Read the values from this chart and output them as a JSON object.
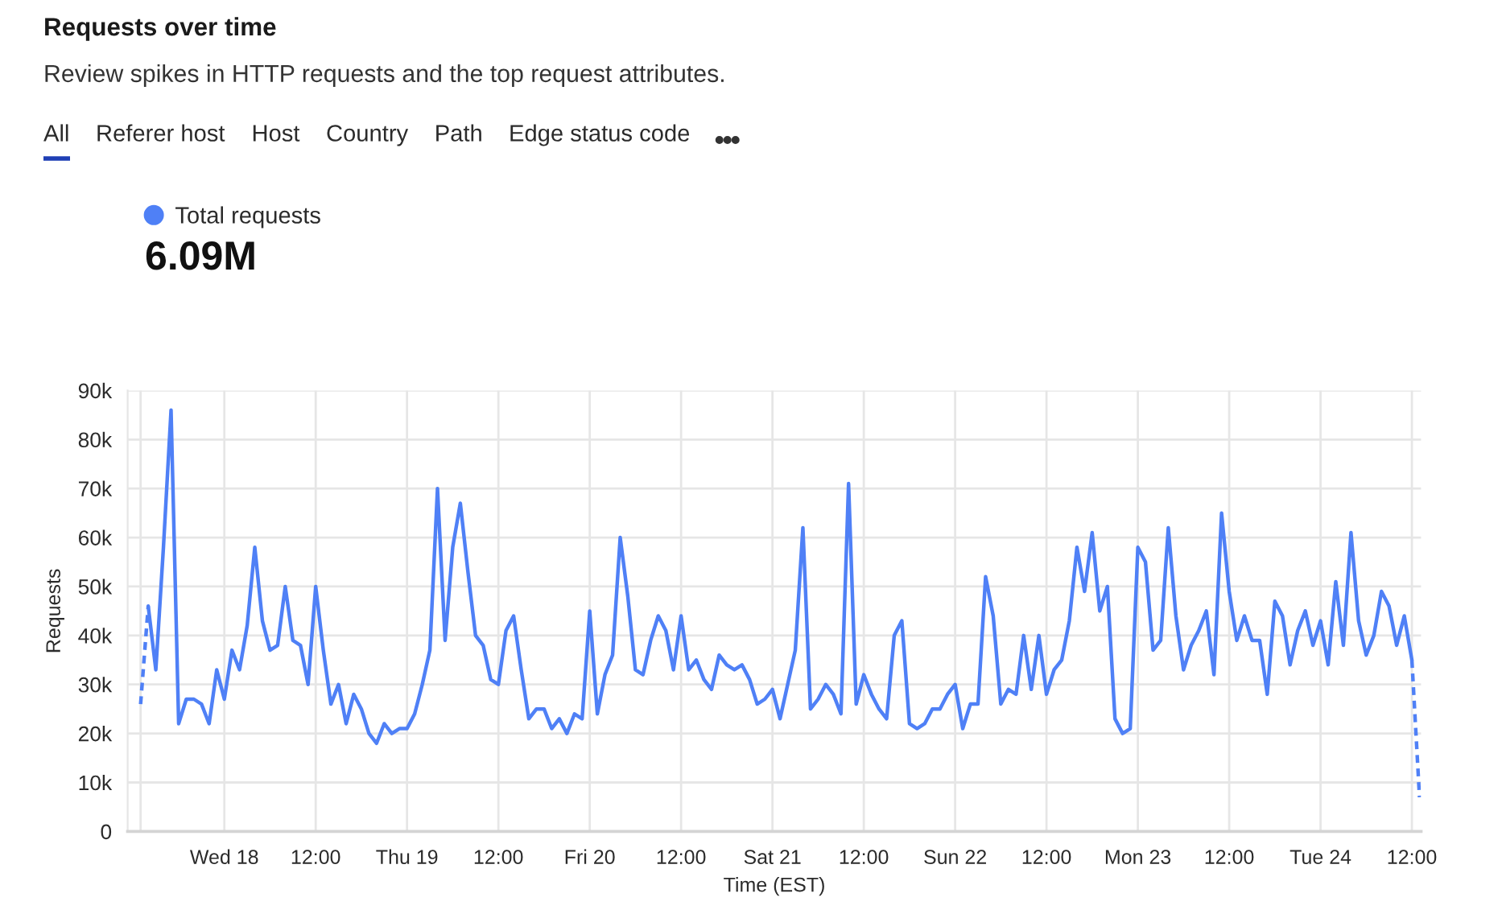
{
  "chart_data": {
    "type": "line",
    "title": "Requests over time",
    "subtitle": "Review spikes in HTTP requests and the top request attributes.",
    "annotations": [
      "All",
      "Referer host",
      "Host",
      "Country",
      "Path",
      "Edge status code",
      "6.09M"
    ],
    "xlabel": "Time (EST)",
    "ylabel": "Requests",
    "categories": [
      null,
      null,
      null,
      null,
      null,
      null,
      null,
      null,
      null,
      null,
      null,
      "Wed 18",
      null,
      null,
      null,
      null,
      null,
      null,
      null,
      null,
      null,
      null,
      null,
      "12:00",
      null,
      null,
      null,
      null,
      null,
      null,
      null,
      null,
      null,
      null,
      null,
      "Thu 19",
      null,
      null,
      null,
      null,
      null,
      null,
      null,
      null,
      null,
      null,
      null,
      "12:00",
      null,
      null,
      null,
      null,
      null,
      null,
      null,
      null,
      null,
      null,
      null,
      "Fri 20",
      null,
      null,
      null,
      null,
      null,
      null,
      null,
      null,
      null,
      null,
      null,
      "12:00",
      null,
      null,
      null,
      null,
      null,
      null,
      null,
      null,
      null,
      null,
      null,
      "Sat 21",
      null,
      null,
      null,
      null,
      null,
      null,
      null,
      null,
      null,
      null,
      null,
      "12:00",
      null,
      null,
      null,
      null,
      null,
      null,
      null,
      null,
      null,
      null,
      null,
      "Sun 22",
      null,
      null,
      null,
      null,
      null,
      null,
      null,
      null,
      null,
      null,
      null,
      "12:00",
      null,
      null,
      null,
      null,
      null,
      null,
      null,
      null,
      null,
      null,
      null,
      "Mon 23",
      null,
      null,
      null,
      null,
      null,
      null,
      null,
      null,
      null,
      null,
      null,
      "12:00",
      null,
      null,
      null,
      null,
      null,
      null,
      null,
      null,
      null,
      null,
      null,
      "Tue 24",
      null,
      null,
      null,
      null,
      null,
      null,
      null,
      null,
      null,
      null,
      null,
      "12:00",
      null
    ],
    "series": [
      {
        "name": "Total requests",
        "color": "#4f80f6",
        "line_style": "solid",
        "values": [
          null,
          46000,
          33000,
          58000,
          86000,
          22000,
          27000,
          27000,
          26000,
          22000,
          33000,
          27000,
          37000,
          33000,
          42000,
          58000,
          43000,
          37000,
          38000,
          50000,
          39000,
          38000,
          30000,
          50000,
          37000,
          26000,
          30000,
          22000,
          28000,
          25000,
          20000,
          18000,
          22000,
          20000,
          21000,
          21000,
          24000,
          30000,
          37000,
          70000,
          39000,
          58000,
          67000,
          53000,
          40000,
          38000,
          31000,
          30000,
          41000,
          44000,
          33000,
          23000,
          25000,
          25000,
          21000,
          23000,
          20000,
          24000,
          23000,
          45000,
          24000,
          32000,
          36000,
          60000,
          48000,
          33000,
          32000,
          39000,
          44000,
          41000,
          33000,
          44000,
          33000,
          35000,
          31000,
          29000,
          36000,
          34000,
          33000,
          34000,
          31000,
          26000,
          27000,
          29000,
          23000,
          30000,
          37000,
          62000,
          25000,
          27000,
          30000,
          28000,
          24000,
          71000,
          26000,
          32000,
          28000,
          25000,
          23000,
          40000,
          43000,
          22000,
          21000,
          22000,
          25000,
          25000,
          28000,
          30000,
          21000,
          26000,
          26000,
          52000,
          44000,
          26000,
          29000,
          28000,
          40000,
          29000,
          40000,
          28000,
          33000,
          35000,
          43000,
          58000,
          49000,
          61000,
          45000,
          50000,
          23000,
          20000,
          21000,
          58000,
          55000,
          37000,
          39000,
          62000,
          44000,
          33000,
          38000,
          41000,
          45000,
          32000,
          65000,
          49000,
          39000,
          44000,
          39000,
          39000,
          28000,
          47000,
          44000,
          34000,
          41000,
          45000,
          38000,
          43000,
          34000,
          51000,
          38000,
          61000,
          43000,
          36000,
          40000,
          49000,
          46000,
          38000,
          44000,
          35000,
          null
        ]
      },
      {
        "color": "#4f80f6",
        "line_style": "dashed",
        "values": [
          26000,
          46000,
          null,
          null,
          null,
          null,
          null,
          null,
          null,
          null,
          null,
          null,
          null,
          null,
          null,
          null,
          null,
          null,
          null,
          null,
          null,
          null,
          null,
          null,
          null,
          null,
          null,
          null,
          null,
          null,
          null,
          null,
          null,
          null,
          null,
          null,
          null,
          null,
          null,
          null,
          null,
          null,
          null,
          null,
          null,
          null,
          null,
          null,
          null,
          null,
          null,
          null,
          null,
          null,
          null,
          null,
          null,
          null,
          null,
          null,
          null,
          null,
          null,
          null,
          null,
          null,
          null,
          null,
          null,
          null,
          null,
          null,
          null,
          null,
          null,
          null,
          null,
          null,
          null,
          null,
          null,
          null,
          null,
          null,
          null,
          null,
          null,
          null,
          null,
          null,
          null,
          null,
          null,
          null,
          null,
          null,
          null,
          null,
          null,
          null,
          null,
          null,
          null,
          null,
          null,
          null,
          null,
          null,
          null,
          null,
          null,
          null,
          null,
          null,
          null,
          null,
          null,
          null,
          null,
          null,
          null,
          null,
          null,
          null,
          null,
          null,
          null,
          null,
          null,
          null,
          null,
          null,
          null,
          null,
          null,
          null,
          null,
          null,
          null,
          null,
          null,
          null,
          null,
          null,
          null,
          null,
          null,
          null,
          null,
          null,
          null,
          null,
          null,
          null,
          null,
          null,
          null,
          null,
          null,
          null,
          null,
          null,
          null,
          null,
          null,
          null,
          null,
          null,
          null
        ]
      },
      {
        "color": "#4f80f6",
        "line_style": "dashed",
        "values": [
          null,
          null,
          null,
          null,
          null,
          null,
          null,
          null,
          null,
          null,
          null,
          null,
          null,
          null,
          null,
          null,
          null,
          null,
          null,
          null,
          null,
          null,
          null,
          null,
          null,
          null,
          null,
          null,
          null,
          null,
          null,
          null,
          null,
          null,
          null,
          null,
          null,
          null,
          null,
          null,
          null,
          null,
          null,
          null,
          null,
          null,
          null,
          null,
          null,
          null,
          null,
          null,
          null,
          null,
          null,
          null,
          null,
          null,
          null,
          null,
          null,
          null,
          null,
          null,
          null,
          null,
          null,
          null,
          null,
          null,
          null,
          null,
          null,
          null,
          null,
          null,
          null,
          null,
          null,
          null,
          null,
          null,
          null,
          null,
          null,
          null,
          null,
          null,
          null,
          null,
          null,
          null,
          null,
          null,
          null,
          null,
          null,
          null,
          null,
          null,
          null,
          null,
          null,
          null,
          null,
          null,
          null,
          null,
          null,
          null,
          null,
          null,
          null,
          null,
          null,
          null,
          null,
          null,
          null,
          null,
          null,
          null,
          null,
          null,
          null,
          null,
          null,
          null,
          null,
          null,
          null,
          null,
          null,
          null,
          null,
          null,
          null,
          null,
          null,
          null,
          null,
          null,
          null,
          null,
          null,
          null,
          null,
          null,
          null,
          null,
          null,
          null,
          null,
          null,
          null,
          null,
          null,
          null,
          null,
          null,
          null,
          null,
          null,
          null,
          null,
          null,
          null,
          35000,
          7000
        ]
      }
    ],
    "ylim": [
      0,
      90000
    ],
    "yticks": [
      0,
      {
        "value": 10000,
        "label": "10k"
      },
      {
        "value": 20000,
        "label": "20k"
      },
      {
        "value": 30000,
        "label": "30k"
      },
      {
        "value": 40000,
        "label": "40k"
      },
      {
        "value": 50000,
        "label": "50k"
      },
      {
        "value": 60000,
        "label": "60k"
      },
      {
        "value": 70000,
        "label": "70k"
      },
      {
        "value": 80000,
        "label": "80k"
      },
      {
        "value": 90000,
        "label": "90k"
      }
    ],
    "grid": true,
    "legend": "top left"
  }
}
